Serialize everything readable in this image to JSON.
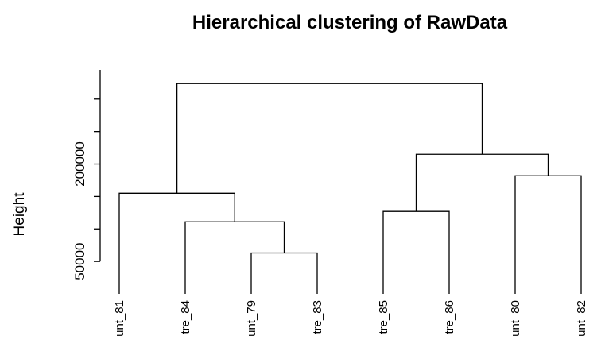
{
  "chart_data": {
    "type": "dendrogram",
    "title": "Hierarchical clustering of RawData",
    "y_label": "Height",
    "labels": [
      "unt_81",
      "tre_84",
      "unt_79",
      "tre_83",
      "tre_85",
      "tre_86",
      "unt_80",
      "unt_82"
    ],
    "merges": [
      {
        "left": {
          "leaf": 2
        },
        "right": {
          "leaf": 3
        },
        "height": 63000
      },
      {
        "left": {
          "leaf": 1
        },
        "right": {
          "node": 0
        },
        "height": 111000
      },
      {
        "left": {
          "leaf": 0
        },
        "right": {
          "node": 1
        },
        "height": 155000
      },
      {
        "left": {
          "leaf": 4
        },
        "right": {
          "leaf": 5
        },
        "height": 127000
      },
      {
        "left": {
          "leaf": 6
        },
        "right": {
          "leaf": 7
        },
        "height": 182000
      },
      {
        "left": {
          "node": 3
        },
        "right": {
          "node": 4
        },
        "height": 215000
      },
      {
        "left": {
          "node": 2
        },
        "right": {
          "node": 5
        },
        "height": 324000
      }
    ],
    "ylim": [
      0,
      345000
    ],
    "yticks": [
      {
        "value": 50000,
        "label": "50000"
      },
      {
        "value": 100000,
        "label": null
      },
      {
        "value": 150000,
        "label": null
      },
      {
        "value": 200000,
        "label": "200000"
      },
      {
        "value": 250000,
        "label": null
      },
      {
        "value": 300000,
        "label": null
      }
    ],
    "color": "#000000"
  }
}
